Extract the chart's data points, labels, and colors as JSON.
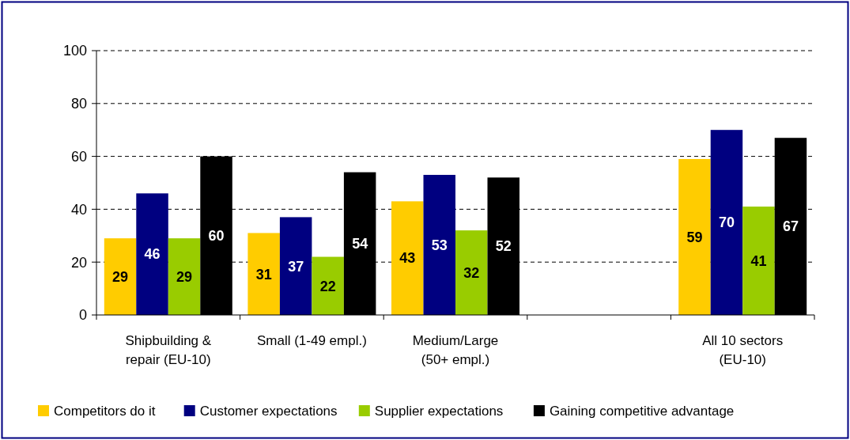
{
  "chart_data": {
    "type": "bar",
    "categories": [
      "Shipbuilding & repair (EU-10)",
      "Small (1-49 empl.)",
      "Medium/Large (50+ empl.)",
      null,
      "All 10 sectors (EU-10)"
    ],
    "series": [
      {
        "name": "Competitors do it",
        "color": "#ffcc00",
        "values": [
          29,
          31,
          43,
          null,
          59
        ]
      },
      {
        "name": "Customer expectations",
        "color": "#000080",
        "values": [
          46,
          37,
          53,
          null,
          70
        ]
      },
      {
        "name": "Supplier expectations",
        "color": "#99cc00",
        "values": [
          29,
          22,
          32,
          null,
          41
        ]
      },
      {
        "name": "Gaining competitive advantage",
        "color": "#000000",
        "values": [
          60,
          54,
          52,
          null,
          67
        ]
      }
    ],
    "ylim": [
      0,
      100
    ],
    "yticks": [
      0,
      20,
      40,
      60,
      80,
      100
    ],
    "grid": "y",
    "legend": "bottom",
    "data_labels": true
  }
}
